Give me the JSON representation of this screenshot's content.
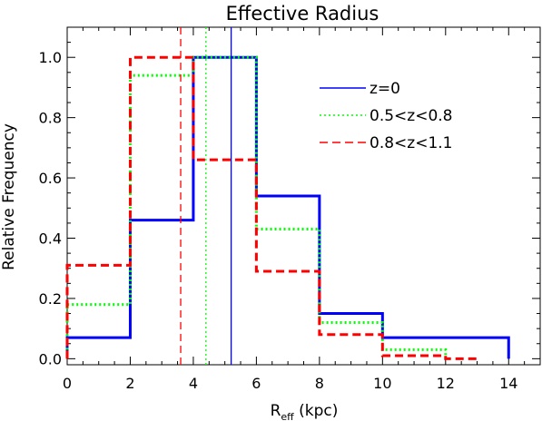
{
  "chart_data": {
    "type": "line",
    "title": "Effective Radius",
    "xlabel_main": "R",
    "xlabel_sub": "eff",
    "xlabel_rest": " (kpc)",
    "ylabel": "Relative Frequency",
    "xlim": [
      0,
      15
    ],
    "ylim": [
      -0.02,
      1.1
    ],
    "xticks": [
      0,
      2,
      4,
      6,
      8,
      10,
      12,
      14
    ],
    "xtick_labels": [
      "0",
      "2",
      "4",
      "6",
      "8",
      "10",
      "12",
      "14"
    ],
    "yticks": [
      0.0,
      0.2,
      0.4,
      0.6,
      0.8,
      1.0
    ],
    "ytick_labels": [
      "0.0",
      "0.2",
      "0.4",
      "0.6",
      "0.8",
      "1.0"
    ],
    "grid": false,
    "legend_position": "top-right",
    "series": [
      {
        "name": "z=0",
        "color": "#0000ff",
        "dash": "solid",
        "bin_edges": [
          0,
          2,
          4,
          6,
          8,
          10,
          12,
          14
        ],
        "values": [
          0.07,
          0.46,
          1.0,
          0.54,
          0.15,
          0.07,
          0.07
        ],
        "median": 5.2
      },
      {
        "name": "0.5<z<0.8",
        "color": "#00ff00",
        "dash": "dotted",
        "bin_edges": [
          0,
          2,
          4,
          6,
          8,
          10,
          12
        ],
        "values": [
          0.18,
          0.94,
          1.0,
          0.43,
          0.12,
          0.03
        ],
        "median": 4.4
      },
      {
        "name": "0.8<z<1.1",
        "color": "#ff0000",
        "dash": "dashed",
        "bin_edges": [
          0,
          2,
          4,
          6,
          8,
          10,
          12,
          13
        ],
        "values": [
          0.31,
          1.0,
          0.66,
          0.29,
          0.08,
          0.01,
          0.0
        ],
        "median": 3.6
      }
    ]
  }
}
